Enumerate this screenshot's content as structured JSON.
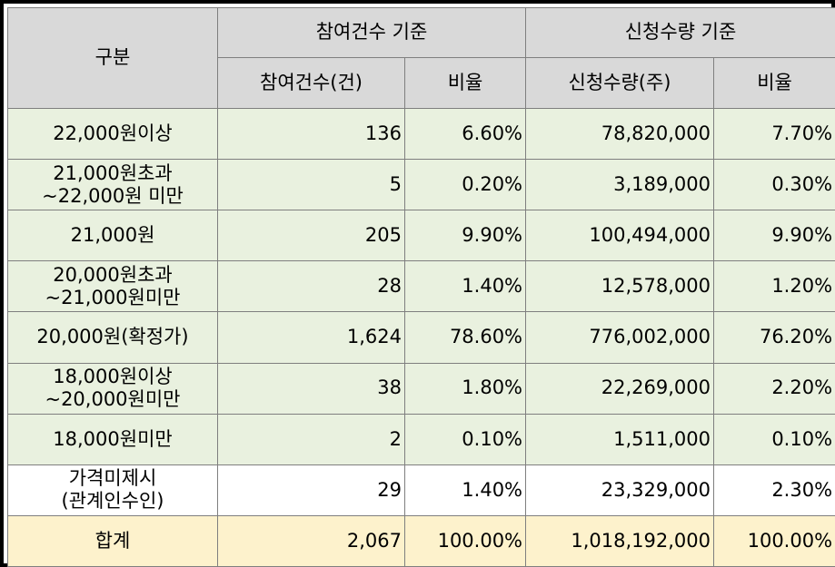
{
  "header": {
    "category": "구분",
    "group_count": "참여건수 기준",
    "group_qty": "신청수량 기준",
    "col_count": "참여건수(건)",
    "col_count_ratio": "비율",
    "col_qty": "신청수량(주)",
    "col_qty_ratio": "비율"
  },
  "rows": [
    {
      "label1": "22,000원이상",
      "label2": "",
      "count": "136",
      "count_ratio": "6.60%",
      "qty": "78,820,000",
      "qty_ratio": "7.70%"
    },
    {
      "label1": "21,000원초과",
      "label2": "~22,000원 미만",
      "count": "5",
      "count_ratio": "0.20%",
      "qty": "3,189,000",
      "qty_ratio": "0.30%"
    },
    {
      "label1": "21,000원",
      "label2": "",
      "count": "205",
      "count_ratio": "9.90%",
      "qty": "100,494,000",
      "qty_ratio": "9.90%"
    },
    {
      "label1": "20,000원초과",
      "label2": "~21,000원미만",
      "count": "28",
      "count_ratio": "1.40%",
      "qty": "12,578,000",
      "qty_ratio": "1.20%"
    },
    {
      "label1": "20,000원(확정가)",
      "label2": "",
      "count": "1,624",
      "count_ratio": "78.60%",
      "qty": "776,002,000",
      "qty_ratio": "76.20%"
    },
    {
      "label1": "18,000원이상",
      "label2": "~20,000원미만",
      "count": "38",
      "count_ratio": "1.80%",
      "qty": "22,269,000",
      "qty_ratio": "2.20%"
    },
    {
      "label1": "18,000원미만",
      "label2": "",
      "count": "2",
      "count_ratio": "0.10%",
      "qty": "1,511,000",
      "qty_ratio": "0.10%"
    },
    {
      "label1": "가격미제시",
      "label2": "(관계인수인)",
      "count": "29",
      "count_ratio": "1.40%",
      "qty": "23,329,000",
      "qty_ratio": "2.30%"
    }
  ],
  "total": {
    "label": "합계",
    "count": "2,067",
    "count_ratio": "100.00%",
    "qty": "1,018,192,000",
    "qty_ratio": "100.00%"
  }
}
